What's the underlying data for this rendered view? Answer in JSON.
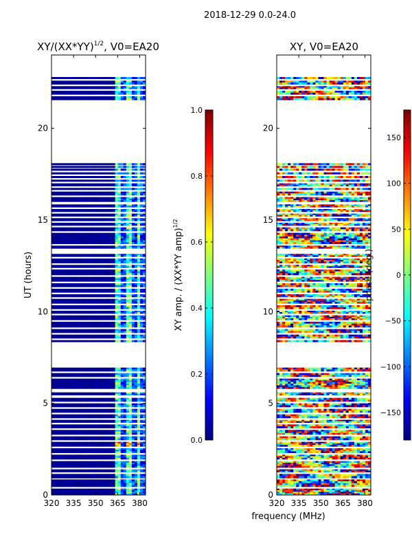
{
  "suptitle": "2018-12-29 0.0-24.0",
  "shared_xlabel": "frequency (MHz)",
  "colormap": [
    "#00007f",
    "#0000ff",
    "#007fff",
    "#00ffff",
    "#7fff7f",
    "#ffff00",
    "#ff7f00",
    "#ff0000",
    "#7f0000"
  ],
  "chart_data": [
    {
      "type": "heatmap",
      "title_main": "XY/(XX*YY)",
      "title_sup": "1/2",
      "title_tail": ", V0=EA20",
      "xlabel": "",
      "ylabel": "UT (hours)",
      "xlim": [
        320,
        384
      ],
      "ylim": [
        0,
        24
      ],
      "xticks": [
        320,
        335,
        350,
        365,
        380
      ],
      "yticks": [
        0,
        5,
        10,
        15,
        20
      ],
      "mode": "amplitude",
      "colorbar": {
        "label_main": "XY amp. / (XX*YY amp)",
        "label_sup": "1/2",
        "range": [
          0.0,
          1.0
        ],
        "ticks": [
          0.0,
          0.2,
          0.4,
          0.6,
          0.8,
          1.0
        ],
        "tick_labels": [
          "0.0",
          "0.2",
          "0.4",
          "0.6",
          "0.8",
          "1.0"
        ]
      }
    },
    {
      "type": "heatmap",
      "title_main": "XY, V0=EA20",
      "title_sup": "",
      "title_tail": "",
      "xlabel": "",
      "ylabel": "",
      "xlim": [
        320,
        384
      ],
      "ylim": [
        0,
        24
      ],
      "xticks": [
        320,
        335,
        350,
        365,
        380
      ],
      "yticks": [
        0,
        5,
        10,
        15,
        20
      ],
      "mode": "phase",
      "colorbar": {
        "label_main": "phase (deg.)",
        "label_sup": "",
        "range": [
          -180,
          180
        ],
        "ticks": [
          -150,
          -100,
          -50,
          0,
          50,
          100,
          150
        ],
        "tick_labels": [
          "−150",
          "−100",
          "−50",
          "0",
          "50",
          "100",
          "150"
        ]
      }
    }
  ],
  "data_segments_hours": [
    [
      0.0,
      0.35
    ],
    [
      0.45,
      0.85
    ],
    [
      0.92,
      1.15
    ],
    [
      1.25,
      1.4
    ],
    [
      1.5,
      1.85
    ],
    [
      1.95,
      2.2
    ],
    [
      2.3,
      2.55
    ],
    [
      2.65,
      2.9
    ],
    [
      3.0,
      3.2
    ],
    [
      3.3,
      3.55
    ],
    [
      3.65,
      3.85
    ],
    [
      3.95,
      4.1
    ],
    [
      4.2,
      4.4
    ],
    [
      4.5,
      4.7
    ],
    [
      4.8,
      5.0
    ],
    [
      5.1,
      5.3
    ],
    [
      5.45,
      5.6
    ],
    [
      5.8,
      6.35
    ],
    [
      6.45,
      6.65
    ],
    [
      6.75,
      6.95
    ],
    [
      8.35,
      8.45
    ],
    [
      8.55,
      8.75
    ],
    [
      8.85,
      9.05
    ],
    [
      9.15,
      9.45
    ],
    [
      9.55,
      9.8
    ],
    [
      9.9,
      10.05
    ],
    [
      10.15,
      10.35
    ],
    [
      10.45,
      10.7
    ],
    [
      10.8,
      10.95
    ],
    [
      11.05,
      11.25
    ],
    [
      11.35,
      11.55
    ],
    [
      11.65,
      11.9
    ],
    [
      12.0,
      12.3
    ],
    [
      12.4,
      12.55
    ],
    [
      12.65,
      12.9
    ],
    [
      13.0,
      13.15
    ],
    [
      13.45,
      13.6
    ],
    [
      13.7,
      14.3
    ],
    [
      14.4,
      14.6
    ],
    [
      14.7,
      14.85
    ],
    [
      14.95,
      15.1
    ],
    [
      15.2,
      15.35
    ],
    [
      15.45,
      15.6
    ],
    [
      15.7,
      15.85
    ],
    [
      16.0,
      16.25
    ],
    [
      16.35,
      16.55
    ],
    [
      16.65,
      16.75
    ],
    [
      16.85,
      17.0
    ],
    [
      17.1,
      17.2
    ],
    [
      17.3,
      17.4
    ],
    [
      17.5,
      17.6
    ],
    [
      17.7,
      17.8
    ],
    [
      17.85,
      17.95
    ],
    [
      18.0,
      18.1
    ],
    [
      21.55,
      21.75
    ],
    [
      21.85,
      22.05
    ],
    [
      22.15,
      22.3
    ],
    [
      22.4,
      22.6
    ],
    [
      22.7,
      22.8
    ]
  ]
}
